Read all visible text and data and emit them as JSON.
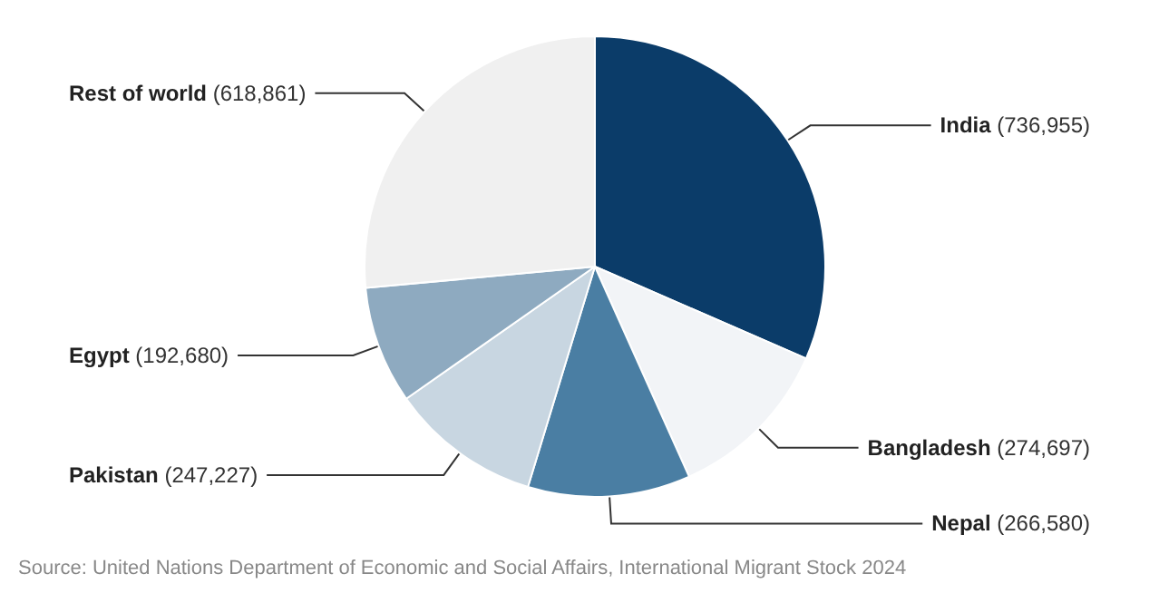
{
  "chart_data": {
    "type": "pie",
    "categories": [
      "India",
      "Bangladesh",
      "Nepal",
      "Pakistan",
      "Egypt",
      "Rest of world"
    ],
    "values": [
      736955,
      274697,
      266580,
      247227,
      192680,
      618861
    ],
    "colors": [
      "#0b3c69",
      "#f2f4f7",
      "#4a7ea3",
      "#c8d6e1",
      "#8eaac0",
      "#f0f0f0"
    ],
    "value_labels": [
      "(736,955)",
      "(274,697)",
      "(266,580)",
      "(247,227)",
      "(192,680)",
      "(618,861)"
    ],
    "annotations": [
      "Source: United Nations Department of Economic and Social Affairs, International Migrant Stock 2024"
    ]
  }
}
